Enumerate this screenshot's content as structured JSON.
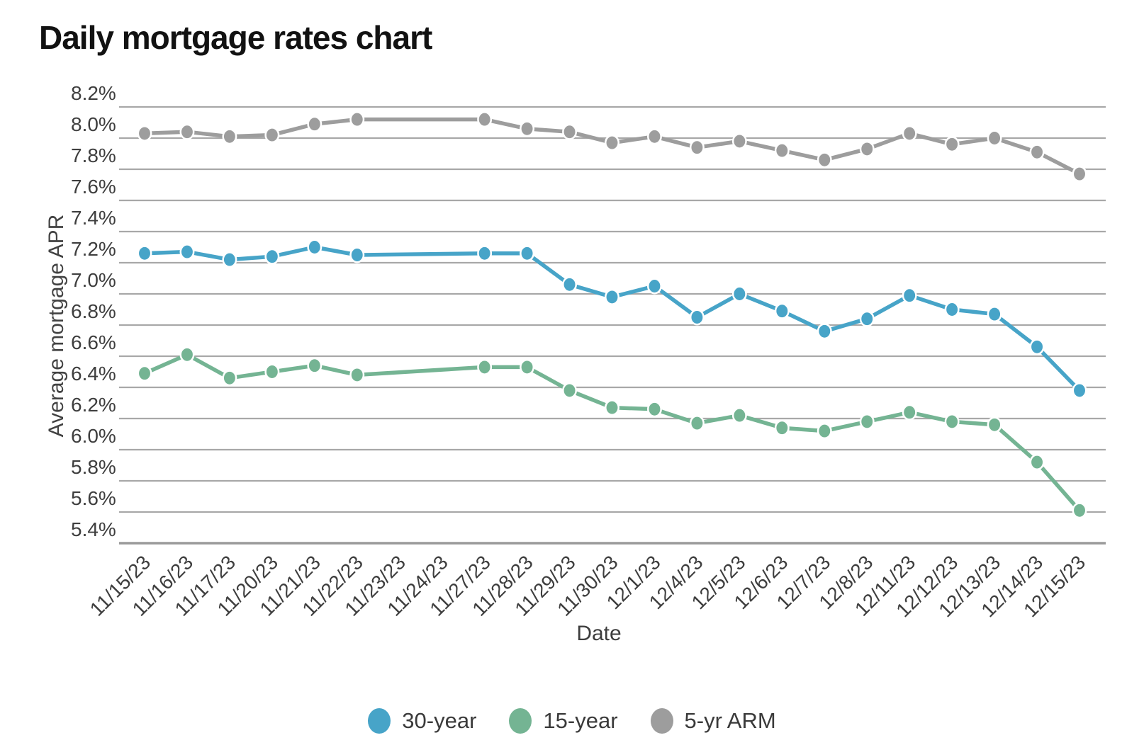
{
  "title": "Daily mortgage rates chart",
  "chart_data": {
    "type": "line",
    "title": "Daily mortgage rates chart",
    "xlabel": "Date",
    "ylabel": "Average mortgage APR",
    "categories": [
      "11/15/23",
      "11/16/23",
      "11/17/23",
      "11/20/23",
      "11/21/23",
      "11/22/23",
      "11/23/23",
      "11/24/23",
      "11/27/23",
      "11/28/23",
      "11/29/23",
      "11/30/23",
      "12/1/23",
      "12/4/23",
      "12/5/23",
      "12/6/23",
      "12/7/23",
      "12/8/23",
      "12/11/23",
      "12/12/23",
      "12/13/23",
      "12/14/23",
      "12/15/23"
    ],
    "series": [
      {
        "name": "30-year",
        "color": "#47a4c8",
        "values": [
          7.26,
          7.27,
          7.22,
          7.24,
          7.3,
          7.25,
          null,
          null,
          7.26,
          7.26,
          7.06,
          6.98,
          7.05,
          6.85,
          7.0,
          6.89,
          6.76,
          6.84,
          6.99,
          6.9,
          6.87,
          6.66,
          6.38
        ]
      },
      {
        "name": "15-year",
        "color": "#74b493",
        "values": [
          6.49,
          6.61,
          6.46,
          6.5,
          6.54,
          6.48,
          null,
          null,
          6.53,
          6.53,
          6.38,
          6.27,
          6.26,
          6.17,
          6.22,
          6.14,
          6.12,
          6.18,
          6.24,
          6.18,
          6.16,
          5.92,
          5.61
        ]
      },
      {
        "name": "5-yr ARM",
        "color": "#9d9d9d",
        "values": [
          8.03,
          8.04,
          8.01,
          8.02,
          8.09,
          8.12,
          null,
          null,
          8.12,
          8.06,
          8.04,
          7.97,
          8.01,
          7.94,
          7.98,
          7.92,
          7.86,
          7.93,
          8.03,
          7.96,
          8.0,
          7.91,
          7.77
        ]
      }
    ],
    "ylim": [
      5.4,
      8.2
    ],
    "ytick_step": 0.2,
    "ytick_labels": [
      "8.2%",
      "8.0%",
      "7.8%",
      "7.6%",
      "7.4%",
      "7.2%",
      "7.0%",
      "6.8%",
      "6.6%",
      "6.4%",
      "6.2%",
      "6.0%",
      "5.8%",
      "5.6%",
      "5.4%"
    ],
    "grid": true,
    "legend_position": "bottom",
    "colors": {
      "grid": "#a8a8a8",
      "axis_line": "#9a9a9a",
      "tick_text": "#3e3e3e"
    }
  }
}
